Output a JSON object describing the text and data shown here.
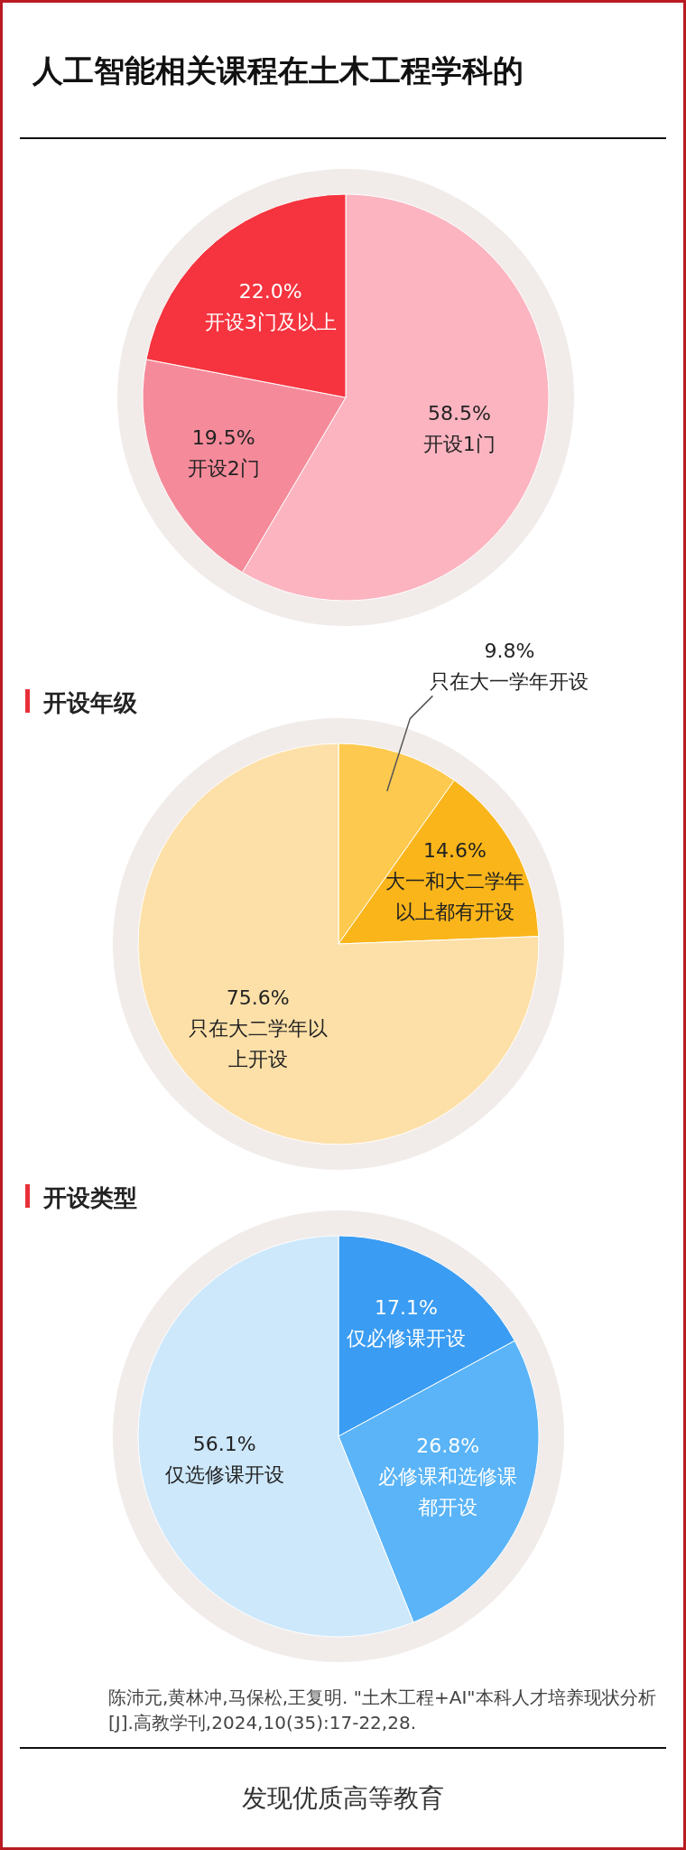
{
  "chart_data": [
    {
      "type": "pie",
      "title": "人工智能相关课程在土木工程学科的",
      "categories": [
        "开设1门",
        "开设2门",
        "开设3门及以上"
      ],
      "values": [
        58.5,
        19.5,
        22.0
      ],
      "value_labels": [
        "58.5%",
        "19.5%",
        "22.0%"
      ],
      "colors": [
        "#fbb4c0",
        "#f58b9a",
        "#f5343f"
      ]
    },
    {
      "type": "pie",
      "title": "开设年级",
      "categories": [
        "只在大一学年开设",
        "大一和大二学年以上都有开设",
        "只在大二学年以上开设"
      ],
      "values": [
        9.8,
        14.6,
        75.6
      ],
      "value_labels": [
        "9.8%",
        "14.6%",
        "75.6%"
      ],
      "colors": [
        "#fdc94e",
        "#f9b51a",
        "#fde0a8"
      ]
    },
    {
      "type": "pie",
      "title": "开设类型",
      "categories": [
        "仅必修课开设",
        "必修课和选修课都开设",
        "仅选修课开设"
      ],
      "values": [
        17.1,
        26.8,
        56.1
      ],
      "value_labels": [
        "17.1%",
        "26.8%",
        "56.1%"
      ],
      "colors": [
        "#3a9cf2",
        "#5ab4f7",
        "#cde8fb"
      ],
      "annotations": [
        "陈沛元,黄林冲,马保松,王复明. \"土木工程+AI\"本科人才培养现状分析[J].高教学刊,2024,10(35):17-22,28.",
        "发现优质高等教育"
      ]
    }
  ]
}
